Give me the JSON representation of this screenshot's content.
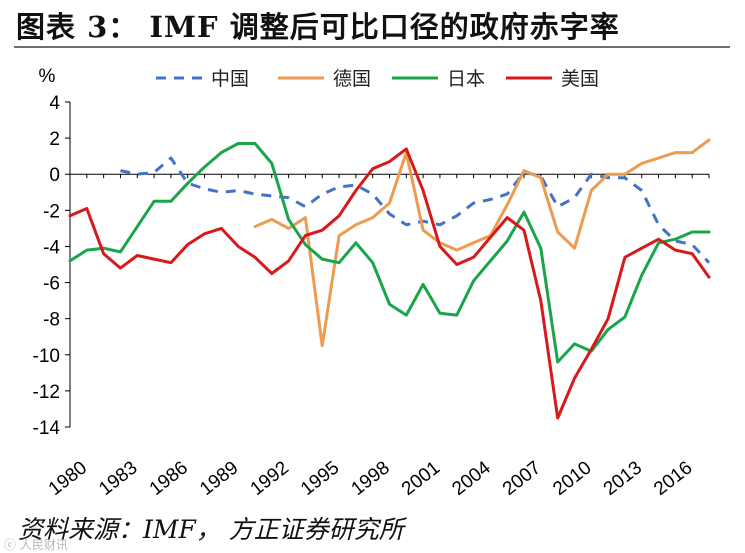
{
  "figure": {
    "title": "图表 3： IMF 调整后可比口径的政府赤字率",
    "source": "资料来源：IMF， 方正证券研究所",
    "watermark": "ⓒ 人民财讯"
  },
  "chart_data": {
    "type": "line",
    "title": "",
    "ylabel": "%",
    "xlabel": "",
    "xlim": [
      1980,
      2018
    ],
    "ylim": [
      -14,
      4
    ],
    "yticks": [
      4,
      2,
      0,
      -2,
      -4,
      -6,
      -8,
      -10,
      -12,
      -14
    ],
    "xticks": [
      1980,
      1983,
      1986,
      1989,
      1992,
      1995,
      1998,
      2001,
      2004,
      2007,
      2010,
      2013,
      2016
    ],
    "grid": false,
    "legend_position": "top-center",
    "series": [
      {
        "name": "中国",
        "color": "#4472c4",
        "dash": "dashed",
        "x": [
          1983,
          1984,
          1985,
          1986,
          1987,
          1988,
          1989,
          1990,
          1991,
          1992,
          1993,
          1994,
          1995,
          1996,
          1997,
          1998,
          1999,
          2000,
          2001,
          2002,
          2003,
          2004,
          2005,
          2006,
          2007,
          2008,
          2009,
          2010,
          2011,
          2012,
          2013,
          2014,
          2015,
          2016,
          2017,
          2018
        ],
        "values": [
          0.2,
          0.0,
          0.1,
          0.9,
          -0.5,
          -0.8,
          -1.0,
          -0.9,
          -1.1,
          -1.2,
          -1.3,
          -1.8,
          -1.1,
          -0.7,
          -0.6,
          -1.1,
          -2.2,
          -2.8,
          -2.6,
          -2.8,
          -2.3,
          -1.6,
          -1.4,
          -1.1,
          0.1,
          -0.1,
          -1.8,
          -1.3,
          0.0,
          -0.2,
          -0.2,
          -0.9,
          -2.8,
          -3.7,
          -3.9,
          -4.9
        ]
      },
      {
        "name": "德国",
        "color": "#ed9b4f",
        "dash": "solid",
        "x": [
          1991,
          1992,
          1993,
          1994,
          1995,
          1996,
          1997,
          1998,
          1999,
          2000,
          2001,
          2002,
          2003,
          2004,
          2005,
          2006,
          2007,
          2008,
          2009,
          2010,
          2011,
          2012,
          2013,
          2014,
          2015,
          2016,
          2017,
          2018
        ],
        "values": [
          -2.9,
          -2.5,
          -3.0,
          -2.4,
          -9.5,
          -3.4,
          -2.8,
          -2.4,
          -1.6,
          1.2,
          -3.1,
          -3.8,
          -4.2,
          -3.8,
          -3.4,
          -1.7,
          0.2,
          -0.2,
          -3.2,
          -4.1,
          -0.9,
          0.0,
          0.0,
          0.6,
          0.9,
          1.2,
          1.2,
          1.9
        ]
      },
      {
        "name": "日本",
        "color": "#1aa54b",
        "dash": "solid",
        "x": [
          1980,
          1981,
          1982,
          1983,
          1984,
          1985,
          1986,
          1987,
          1988,
          1989,
          1990,
          1991,
          1992,
          1993,
          1994,
          1995,
          1996,
          1997,
          1998,
          1999,
          2000,
          2001,
          2002,
          2003,
          2004,
          2005,
          2006,
          2007,
          2008,
          2009,
          2010,
          2011,
          2012,
          2013,
          2014,
          2015,
          2016,
          2017,
          2018
        ],
        "values": [
          -4.8,
          -4.2,
          -4.1,
          -4.3,
          -2.9,
          -1.5,
          -1.5,
          -0.5,
          0.4,
          1.2,
          1.7,
          1.7,
          0.6,
          -2.5,
          -3.9,
          -4.7,
          -4.9,
          -3.8,
          -4.9,
          -7.2,
          -7.8,
          -6.1,
          -7.7,
          -7.8,
          -5.9,
          -4.8,
          -3.7,
          -2.1,
          -4.1,
          -10.4,
          -9.4,
          -9.8,
          -8.6,
          -7.9,
          -5.6,
          -3.8,
          -3.6,
          -3.2,
          -3.2
        ]
      },
      {
        "name": "美国",
        "color": "#d7191c",
        "dash": "solid",
        "x": [
          1980,
          1981,
          1982,
          1983,
          1984,
          1985,
          1986,
          1987,
          1988,
          1989,
          1990,
          1991,
          1992,
          1993,
          1994,
          1995,
          1996,
          1997,
          1998,
          1999,
          2000,
          2001,
          2002,
          2003,
          2004,
          2005,
          2006,
          2007,
          2008,
          2009,
          2010,
          2011,
          2012,
          2013,
          2014,
          2015,
          2016,
          2017,
          2018
        ],
        "values": [
          -2.3,
          -1.9,
          -4.4,
          -5.2,
          -4.5,
          -4.7,
          -4.9,
          -3.9,
          -3.3,
          -3.0,
          -4.0,
          -4.6,
          -5.5,
          -4.8,
          -3.4,
          -3.1,
          -2.3,
          -0.9,
          0.3,
          0.7,
          1.4,
          -0.9,
          -4.0,
          -5.0,
          -4.6,
          -3.5,
          -2.4,
          -3.1,
          -7.0,
          -13.5,
          -11.3,
          -9.7,
          -8.0,
          -4.6,
          -4.1,
          -3.6,
          -4.2,
          -4.4,
          -5.7
        ]
      }
    ]
  }
}
